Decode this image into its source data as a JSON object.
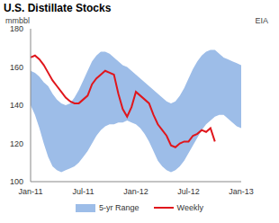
{
  "chart_data": {
    "type": "line",
    "title": "U.S. Distillate Stocks",
    "y_label": "mmbbl",
    "source": "EIA",
    "categories": [
      "Jan-11",
      null,
      null,
      null,
      null,
      null,
      null,
      null,
      null,
      null,
      null,
      null,
      "Jul-11",
      null,
      null,
      null,
      null,
      null,
      null,
      null,
      null,
      null,
      null,
      null,
      "Jan-12",
      null,
      null,
      null,
      null,
      null,
      null,
      null,
      null,
      null,
      null,
      null,
      "Jul-12",
      null,
      null,
      null,
      null,
      null,
      null,
      null,
      null,
      null,
      null,
      null,
      "Jan-13"
    ],
    "series": [
      {
        "name": "5-yr Range",
        "type": "area",
        "color": "#9dbde8",
        "values": [
          [
            140,
            158
          ],
          [
            135,
            157
          ],
          [
            128,
            155
          ],
          [
            120,
            152
          ],
          [
            113,
            150
          ],
          [
            108,
            146
          ],
          [
            106,
            143
          ],
          [
            105,
            141
          ],
          [
            106,
            140
          ],
          [
            107,
            141
          ],
          [
            108,
            144
          ],
          [
            110,
            148
          ],
          [
            113,
            153
          ],
          [
            116,
            158
          ],
          [
            120,
            163
          ],
          [
            124,
            166
          ],
          [
            127,
            168
          ],
          [
            129,
            168
          ],
          [
            130,
            167
          ],
          [
            130,
            165
          ],
          [
            131,
            163
          ],
          [
            131,
            161
          ],
          [
            132,
            160
          ],
          [
            131,
            158
          ],
          [
            130,
            156
          ],
          [
            128,
            154
          ],
          [
            125,
            152
          ],
          [
            121,
            150
          ],
          [
            116,
            148
          ],
          [
            111,
            146
          ],
          [
            108,
            144
          ],
          [
            106,
            142
          ],
          [
            105,
            141
          ],
          [
            106,
            142
          ],
          [
            108,
            145
          ],
          [
            111,
            149
          ],
          [
            115,
            154
          ],
          [
            119,
            159
          ],
          [
            123,
            163
          ],
          [
            127,
            166
          ],
          [
            130,
            168
          ],
          [
            132,
            169
          ],
          [
            134,
            169
          ],
          [
            135,
            167
          ],
          [
            135,
            165
          ],
          [
            133,
            164
          ],
          [
            131,
            163
          ],
          [
            129,
            162
          ],
          [
            128,
            161
          ]
        ]
      },
      {
        "name": "Weekly",
        "type": "line",
        "color": "#e0161c",
        "values": [
          165,
          166,
          164,
          161,
          157,
          153,
          150,
          147,
          144,
          142,
          141,
          141,
          143,
          145,
          151,
          154,
          156,
          158,
          157,
          156,
          146,
          138,
          134,
          139,
          147,
          145,
          143,
          141,
          135,
          130,
          127,
          124,
          119,
          118,
          120,
          121,
          121,
          124,
          125,
          127,
          126,
          128,
          121,
          null,
          null,
          null,
          null,
          null,
          null
        ]
      }
    ],
    "ylim": [
      100,
      180
    ],
    "yticks": [
      100,
      120,
      140,
      160,
      180
    ],
    "grid": false,
    "legend": "bottom"
  }
}
